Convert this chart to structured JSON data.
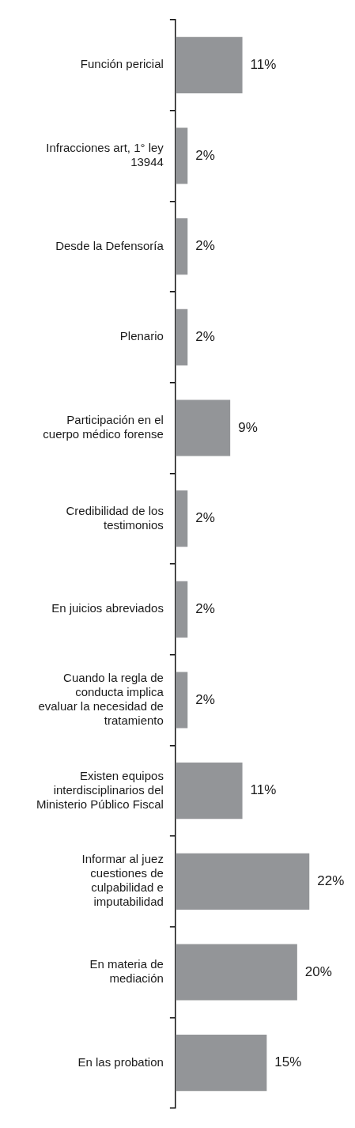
{
  "chart_data": {
    "type": "bar",
    "orientation": "horizontal",
    "categories": [
      "Función pericial",
      "Infracciones art, 1° ley 13944",
      "Desde la Defensoría",
      "Plenario",
      "Participación en el cuerpo médico forense",
      "Credibilidad de los testimonios",
      "En juicios abreviados",
      "Cuando la regla de conducta implica evaluar la necesidad de tratamiento",
      "Existen equipos interdisciplinarios del Ministerio Público Fiscal",
      "Informar al juez cuestiones de culpabilidad e imputabilidad",
      "En materia de mediación",
      "En las probation"
    ],
    "values": [
      11,
      2,
      2,
      2,
      9,
      2,
      2,
      2,
      11,
      22,
      20,
      15
    ],
    "value_labels": [
      "11%",
      "2%",
      "2%",
      "2%",
      "9%",
      "2%",
      "2%",
      "2%",
      "11%",
      "22%",
      "20%",
      "15%"
    ],
    "color": "#939598"
  }
}
